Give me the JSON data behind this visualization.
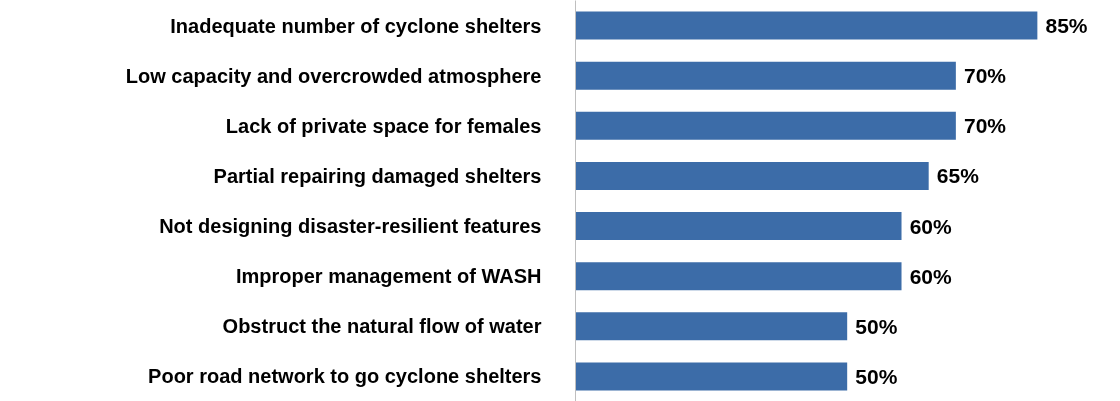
{
  "chart_data": {
    "type": "bar",
    "orientation": "horizontal",
    "categories": [
      "Inadequate number of cyclone shelters",
      "Low capacity and overcrowded atmosphere",
      "Lack of private space for females",
      "Partial repairing damaged shelters",
      "Not designing disaster-resilient features",
      "Improper management of WASH",
      "Obstruct the natural flow of water",
      "Poor road network to go cyclone shelters"
    ],
    "values": [
      85,
      70,
      70,
      65,
      60,
      60,
      50,
      50
    ],
    "value_labels": [
      "85%",
      "70%",
      "70%",
      "65%",
      "60%",
      "60%",
      "50%",
      "50%"
    ],
    "color": "#3c6ca8",
    "tick_labels": "y",
    "grid": false
  }
}
